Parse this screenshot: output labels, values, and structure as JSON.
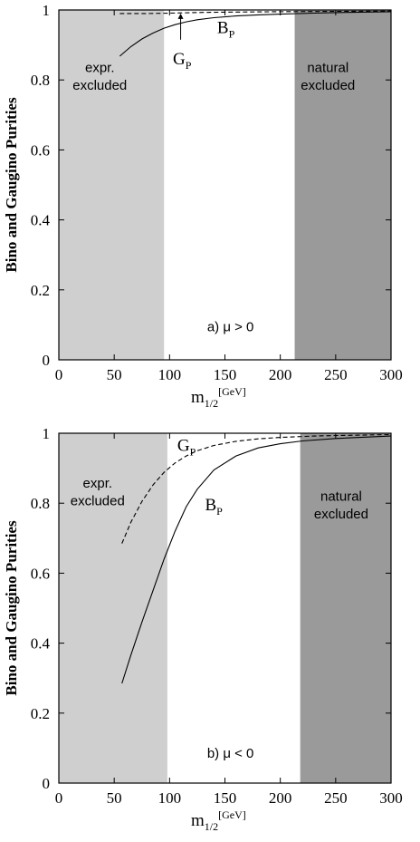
{
  "chart_data": [
    {
      "type": "line",
      "ylabel": "Bino and Gaugino Purities",
      "xlabel": "m",
      "xlabel_sub": "1/2",
      "xlabel_unit": "[GeV]",
      "xlim": [
        0,
        300
      ],
      "ylim": [
        0,
        1
      ],
      "xticks": [
        0,
        50,
        100,
        150,
        200,
        250,
        300
      ],
      "yticks": [
        0,
        0.2,
        0.4,
        0.6,
        0.8,
        1
      ],
      "ytick_labels": [
        "0",
        "0.2",
        "0.4",
        "0.6",
        "0.8",
        "1"
      ],
      "condition": "a)  μ > 0",
      "regions": [
        {
          "label_lines": [
            "expr.",
            "excluded"
          ],
          "x_from": 0,
          "x_to": 95,
          "color": "#cfcfcf"
        },
        {
          "label_lines": [
            "natural",
            "excluded"
          ],
          "x_from": 213,
          "x_to": 300,
          "color": "#9a9a9a"
        }
      ],
      "series": [
        {
          "name": "B",
          "sub": "P",
          "style": "solid",
          "x": [
            55,
            65,
            75,
            85,
            95,
            105,
            115,
            125,
            140,
            160,
            180,
            200,
            230,
            260,
            300
          ],
          "y": [
            0.868,
            0.895,
            0.917,
            0.934,
            0.948,
            0.958,
            0.966,
            0.972,
            0.978,
            0.983,
            0.986,
            0.988,
            0.991,
            0.993,
            0.995
          ]
        },
        {
          "name": "G",
          "sub": "P",
          "style": "dashed",
          "x": [
            55,
            80,
            100,
            130,
            160,
            200,
            250,
            300
          ],
          "y": [
            0.99,
            0.99,
            0.991,
            0.993,
            0.994,
            0.995,
            0.996,
            0.997
          ]
        }
      ],
      "annotations": [
        {
          "text": "B",
          "sub": "P",
          "at": [
            143,
            0.95
          ]
        },
        {
          "text": "G",
          "sub": "P",
          "at": [
            103,
            0.86
          ],
          "arrow_from": [
            110,
            0.915
          ],
          "arrow_to": [
            110,
            0.99
          ]
        }
      ]
    },
    {
      "type": "line",
      "ylabel": "Bino and Gaugino Purities",
      "xlabel": "m",
      "xlabel_sub": "1/2",
      "xlabel_unit": "[GeV]",
      "xlim": [
        0,
        300
      ],
      "ylim": [
        0,
        1
      ],
      "xticks": [
        0,
        50,
        100,
        150,
        200,
        250,
        300
      ],
      "yticks": [
        0,
        0.2,
        0.4,
        0.6,
        0.8,
        1
      ],
      "ytick_labels": [
        "0",
        "0.2",
        "0.4",
        "0.6",
        "0.8",
        "1"
      ],
      "condition": "b)  μ < 0",
      "regions": [
        {
          "label_lines": [
            "expr.",
            "excluded"
          ],
          "x_from": 0,
          "x_to": 98,
          "color": "#cfcfcf"
        },
        {
          "label_lines": [
            "natural",
            "excluded"
          ],
          "x_from": 218,
          "x_to": 300,
          "color": "#9a9a9a"
        }
      ],
      "series": [
        {
          "name": "B",
          "sub": "P",
          "style": "solid",
          "x": [
            57,
            65,
            75,
            85,
            95,
            105,
            115,
            125,
            140,
            160,
            180,
            200,
            220,
            250,
            300
          ],
          "y": [
            0.285,
            0.365,
            0.46,
            0.55,
            0.64,
            0.72,
            0.79,
            0.84,
            0.895,
            0.935,
            0.958,
            0.97,
            0.978,
            0.985,
            0.992
          ]
        },
        {
          "name": "G",
          "sub": "P",
          "style": "dashed",
          "x": [
            57,
            65,
            75,
            85,
            95,
            105,
            115,
            125,
            140,
            160,
            180,
            200,
            230,
            260,
            300
          ],
          "y": [
            0.685,
            0.745,
            0.805,
            0.852,
            0.888,
            0.915,
            0.935,
            0.95,
            0.965,
            0.977,
            0.984,
            0.988,
            0.992,
            0.994,
            0.996
          ]
        }
      ],
      "annotations": [
        {
          "text": "G",
          "sub": "P",
          "at": [
            107,
            0.965
          ]
        },
        {
          "text": "B",
          "sub": "P",
          "at": [
            132,
            0.795
          ]
        }
      ]
    }
  ]
}
